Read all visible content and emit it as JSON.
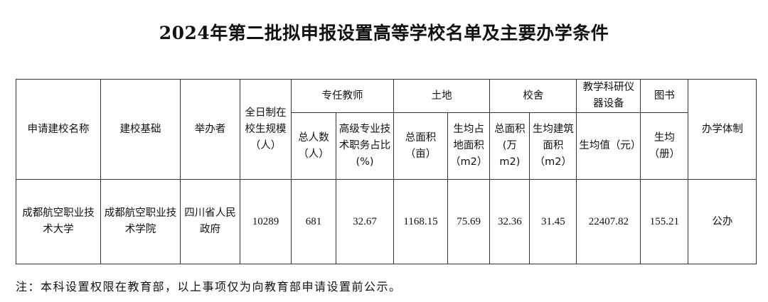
{
  "title": "2024年第二批拟申报设置高等学校名单及主要办学条件",
  "headers": {
    "school_name": "申请建校名称",
    "basis": "建校基础",
    "sponsor": "举办者",
    "enrollment": "全日制在校生规模（人）",
    "teachers": "专任教师",
    "teachers_total": "总人数（人）",
    "teachers_senior": "高级专业技术职务占比(%)",
    "land": "土地",
    "land_total": "总面积（亩）",
    "land_per": "生均占地面积（m2）",
    "building": "校舍",
    "building_total": "总面积(万m2)",
    "building_per": "生均建筑面积（m2）",
    "equipment": "教学科研仪器设备",
    "equipment_per": "生均值（元）",
    "books": "图书",
    "books_per": "生均（册）",
    "system": "办学体制"
  },
  "rows": [
    {
      "school_name": "成都航空职业技术大学",
      "basis": "成都航空职业技术学院",
      "sponsor": "四川省人民政府",
      "enrollment": "10289",
      "teachers_total": "681",
      "teachers_senior": "32.67",
      "land_total": "1168.15",
      "land_per": "75.69",
      "building_total": "32.36",
      "building_per": "31.45",
      "equipment_per": "22407.82",
      "books_per": "155.21",
      "system": "公办"
    }
  ],
  "note": "注：本科设置权限在教育部，以上事项仅为向教育部申请设置前公示。"
}
